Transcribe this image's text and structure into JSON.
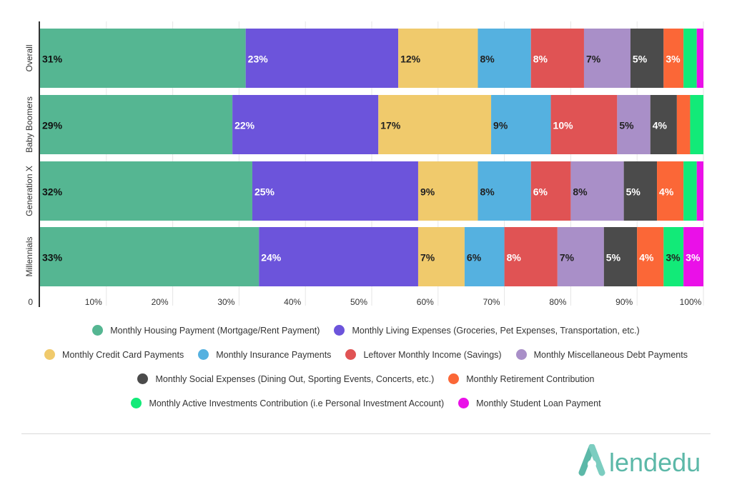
{
  "colors": {
    "housing": "#55b692",
    "living": "#6c54db",
    "credit": "#f0ca6c",
    "insurance": "#55b1e0",
    "leftover": "#e05354",
    "misc_debt": "#a98fc8",
    "social": "#4b4b4b",
    "retirement": "#fb6737",
    "investments": "#12ea78",
    "student_loan": "#ea10e8",
    "brand": "#5cb8a8"
  },
  "logo": {
    "text": "lendedu"
  },
  "chart_data": {
    "type": "bar",
    "orientation": "horizontal",
    "stacked": true,
    "categories": [
      "Overall",
      "Baby Boomers",
      "Generation X",
      "Millennials"
    ],
    "xlim": [
      0,
      100
    ],
    "x_ticks": [
      "0",
      "10%",
      "20%",
      "30%",
      "40%",
      "50%",
      "60%",
      "70%",
      "80%",
      "90%",
      "100%"
    ],
    "grid": true,
    "legend_position": "bottom",
    "series": [
      {
        "name": "Monthly Housing Payment (Mortgage/Rent Payment)",
        "color_key": "housing",
        "values": [
          31,
          29,
          32,
          33
        ],
        "labels": [
          "31%",
          "29%",
          "32%",
          "33%"
        ]
      },
      {
        "name": "Monthly Living Expenses (Groceries, Pet Expenses, Transportation, etc.)",
        "color_key": "living",
        "values": [
          23,
          22,
          25,
          24
        ],
        "labels": [
          "23%",
          "22%",
          "25%",
          "24%"
        ]
      },
      {
        "name": "Monthly Credit Card Payments",
        "color_key": "credit",
        "values": [
          12,
          17,
          9,
          7
        ],
        "labels": [
          "12%",
          "17%",
          "9%",
          "7%"
        ]
      },
      {
        "name": "Monthly Insurance Payments",
        "color_key": "insurance",
        "values": [
          8,
          9,
          8,
          6
        ],
        "labels": [
          "8%",
          "9%",
          "8%",
          "6%"
        ]
      },
      {
        "name": "Leftover Monthly Income (Savings)",
        "color_key": "leftover",
        "values": [
          8,
          10,
          6,
          8
        ],
        "labels": [
          "8%",
          "10%",
          "6%",
          "8%"
        ]
      },
      {
        "name": "Monthly Miscellaneous Debt Payments",
        "color_key": "misc_debt",
        "values": [
          7,
          5,
          8,
          7
        ],
        "labels": [
          "7%",
          "5%",
          "8%",
          "7%"
        ]
      },
      {
        "name": "Monthly Social Expenses (Dining Out, Sporting Events, Concerts, etc.)",
        "color_key": "social",
        "values": [
          5,
          4,
          5,
          5
        ],
        "labels": [
          "5%",
          "4%",
          "5%",
          "5%"
        ]
      },
      {
        "name": "Monthly Retirement Contribution",
        "color_key": "retirement",
        "values": [
          3,
          2,
          4,
          4
        ],
        "labels": [
          "3%",
          "",
          "4%",
          "4%"
        ]
      },
      {
        "name": "Monthly Active Investments Contribution (i.e Personal Investment Account)",
        "color_key": "investments",
        "values": [
          2,
          2,
          2,
          3
        ],
        "labels": [
          "",
          "",
          "",
          "3%"
        ]
      },
      {
        "name": "Monthly Student Loan Payment",
        "color_key": "student_loan",
        "values": [
          1,
          0,
          1,
          3
        ],
        "labels": [
          "",
          "",
          "",
          "3%"
        ]
      }
    ]
  },
  "legend_rows": [
    [
      0,
      1
    ],
    [
      2,
      3,
      4,
      5
    ],
    [
      6,
      7
    ],
    [
      8,
      9
    ]
  ]
}
